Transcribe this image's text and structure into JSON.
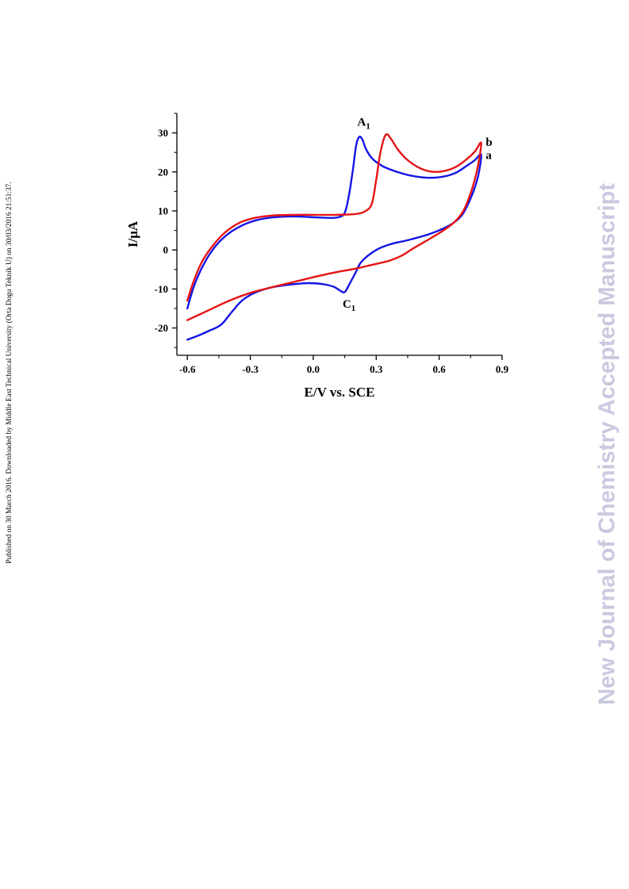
{
  "page": {
    "side_note": "Published on 30 March 2016. Downloaded by Middle East Technical University (Orta Dogu Teknik U) on 30/03/2016 21:51:37.",
    "watermark": "New Journal of Chemistry Accepted Manuscript"
  },
  "chart_data": {
    "type": "line",
    "title": "",
    "xlabel": "E/V vs. SCE",
    "ylabel": "I/μA",
    "xlim": [
      -0.65,
      0.9
    ],
    "ylim": [
      -27,
      35
    ],
    "xticks": [
      -0.6,
      -0.3,
      0.0,
      0.3,
      0.6,
      0.9
    ],
    "xtick_labels": [
      "-0.6",
      "-0.3",
      "0.0",
      "0.3",
      "0.6",
      "0.9"
    ],
    "yticks": [
      -20,
      -10,
      0,
      10,
      20,
      30
    ],
    "ytick_labels": [
      "-20",
      "-10",
      "0",
      "10",
      "20",
      "30"
    ],
    "grid": false,
    "series": [
      {
        "name": "a",
        "color": "#1414e6",
        "points": [
          [
            -0.6,
            -15
          ],
          [
            -0.57,
            -9.5
          ],
          [
            -0.53,
            -4.5
          ],
          [
            -0.48,
            0
          ],
          [
            -0.42,
            3.5
          ],
          [
            -0.35,
            6
          ],
          [
            -0.28,
            7.5
          ],
          [
            -0.2,
            8.3
          ],
          [
            -0.1,
            8.6
          ],
          [
            0.0,
            8.4
          ],
          [
            0.08,
            8.2
          ],
          [
            0.12,
            8.4
          ],
          [
            0.15,
            9.5
          ],
          [
            0.17,
            14
          ],
          [
            0.19,
            21
          ],
          [
            0.205,
            27
          ],
          [
            0.22,
            29
          ],
          [
            0.235,
            28.2
          ],
          [
            0.25,
            26
          ],
          [
            0.28,
            23.5
          ],
          [
            0.33,
            21.5
          ],
          [
            0.4,
            20
          ],
          [
            0.47,
            19
          ],
          [
            0.55,
            18.5
          ],
          [
            0.62,
            18.8
          ],
          [
            0.68,
            19.8
          ],
          [
            0.73,
            21.5
          ],
          [
            0.77,
            23
          ],
          [
            0.8,
            24.5
          ],
          [
            0.79,
            20
          ],
          [
            0.77,
            16
          ],
          [
            0.74,
            12
          ],
          [
            0.71,
            9
          ],
          [
            0.67,
            7
          ],
          [
            0.62,
            5.5
          ],
          [
            0.55,
            4
          ],
          [
            0.45,
            2.5
          ],
          [
            0.37,
            1.5
          ],
          [
            0.3,
            0
          ],
          [
            0.23,
            -3
          ],
          [
            0.2,
            -6
          ],
          [
            0.17,
            -9
          ],
          [
            0.15,
            -10.8
          ],
          [
            0.13,
            -10.5
          ],
          [
            0.1,
            -9.5
          ],
          [
            0.05,
            -8.8
          ],
          [
            -0.02,
            -8.5
          ],
          [
            -0.1,
            -8.8
          ],
          [
            -0.2,
            -9.6
          ],
          [
            -0.28,
            -11
          ],
          [
            -0.34,
            -13
          ],
          [
            -0.39,
            -16
          ],
          [
            -0.44,
            -19.2
          ],
          [
            -0.5,
            -20.8
          ],
          [
            -0.55,
            -22
          ],
          [
            -0.6,
            -23
          ]
        ]
      },
      {
        "name": "b",
        "color": "#e61414",
        "points": [
          [
            -0.6,
            -13
          ],
          [
            -0.57,
            -8
          ],
          [
            -0.53,
            -3
          ],
          [
            -0.48,
            1
          ],
          [
            -0.42,
            4.5
          ],
          [
            -0.35,
            7
          ],
          [
            -0.28,
            8.2
          ],
          [
            -0.2,
            8.8
          ],
          [
            -0.1,
            9.0
          ],
          [
            0.0,
            9.0
          ],
          [
            0.1,
            9.0
          ],
          [
            0.2,
            9.2
          ],
          [
            0.25,
            10
          ],
          [
            0.28,
            12
          ],
          [
            0.3,
            18
          ],
          [
            0.32,
            25
          ],
          [
            0.345,
            29.5
          ],
          [
            0.37,
            28.5
          ],
          [
            0.4,
            26
          ],
          [
            0.44,
            23.5
          ],
          [
            0.5,
            21.2
          ],
          [
            0.56,
            20.1
          ],
          [
            0.62,
            20.2
          ],
          [
            0.68,
            21.3
          ],
          [
            0.73,
            23.2
          ],
          [
            0.77,
            25.2
          ],
          [
            0.8,
            27.5
          ],
          [
            0.79,
            23
          ],
          [
            0.77,
            18
          ],
          [
            0.74,
            13
          ],
          [
            0.71,
            9.5
          ],
          [
            0.67,
            7
          ],
          [
            0.62,
            5
          ],
          [
            0.56,
            3
          ],
          [
            0.48,
            0.5
          ],
          [
            0.42,
            -1.5
          ],
          [
            0.36,
            -2.8
          ],
          [
            0.28,
            -3.8
          ],
          [
            0.2,
            -4.8
          ],
          [
            0.1,
            -5.8
          ],
          [
            0.0,
            -7
          ],
          [
            -0.1,
            -8.3
          ],
          [
            -0.2,
            -9.6
          ],
          [
            -0.3,
            -11
          ],
          [
            -0.4,
            -13
          ],
          [
            -0.5,
            -15.5
          ],
          [
            -0.6,
            -18
          ]
        ]
      }
    ],
    "annotations": [
      {
        "text": "A",
        "sub": "1",
        "x": 0.21,
        "y": 31.8
      },
      {
        "text": "C",
        "sub": "1",
        "x": 0.14,
        "y": -14.8
      },
      {
        "text": "b",
        "x": 0.822,
        "y": 26.7
      },
      {
        "text": "a",
        "x": 0.822,
        "y": 23.3
      }
    ]
  }
}
